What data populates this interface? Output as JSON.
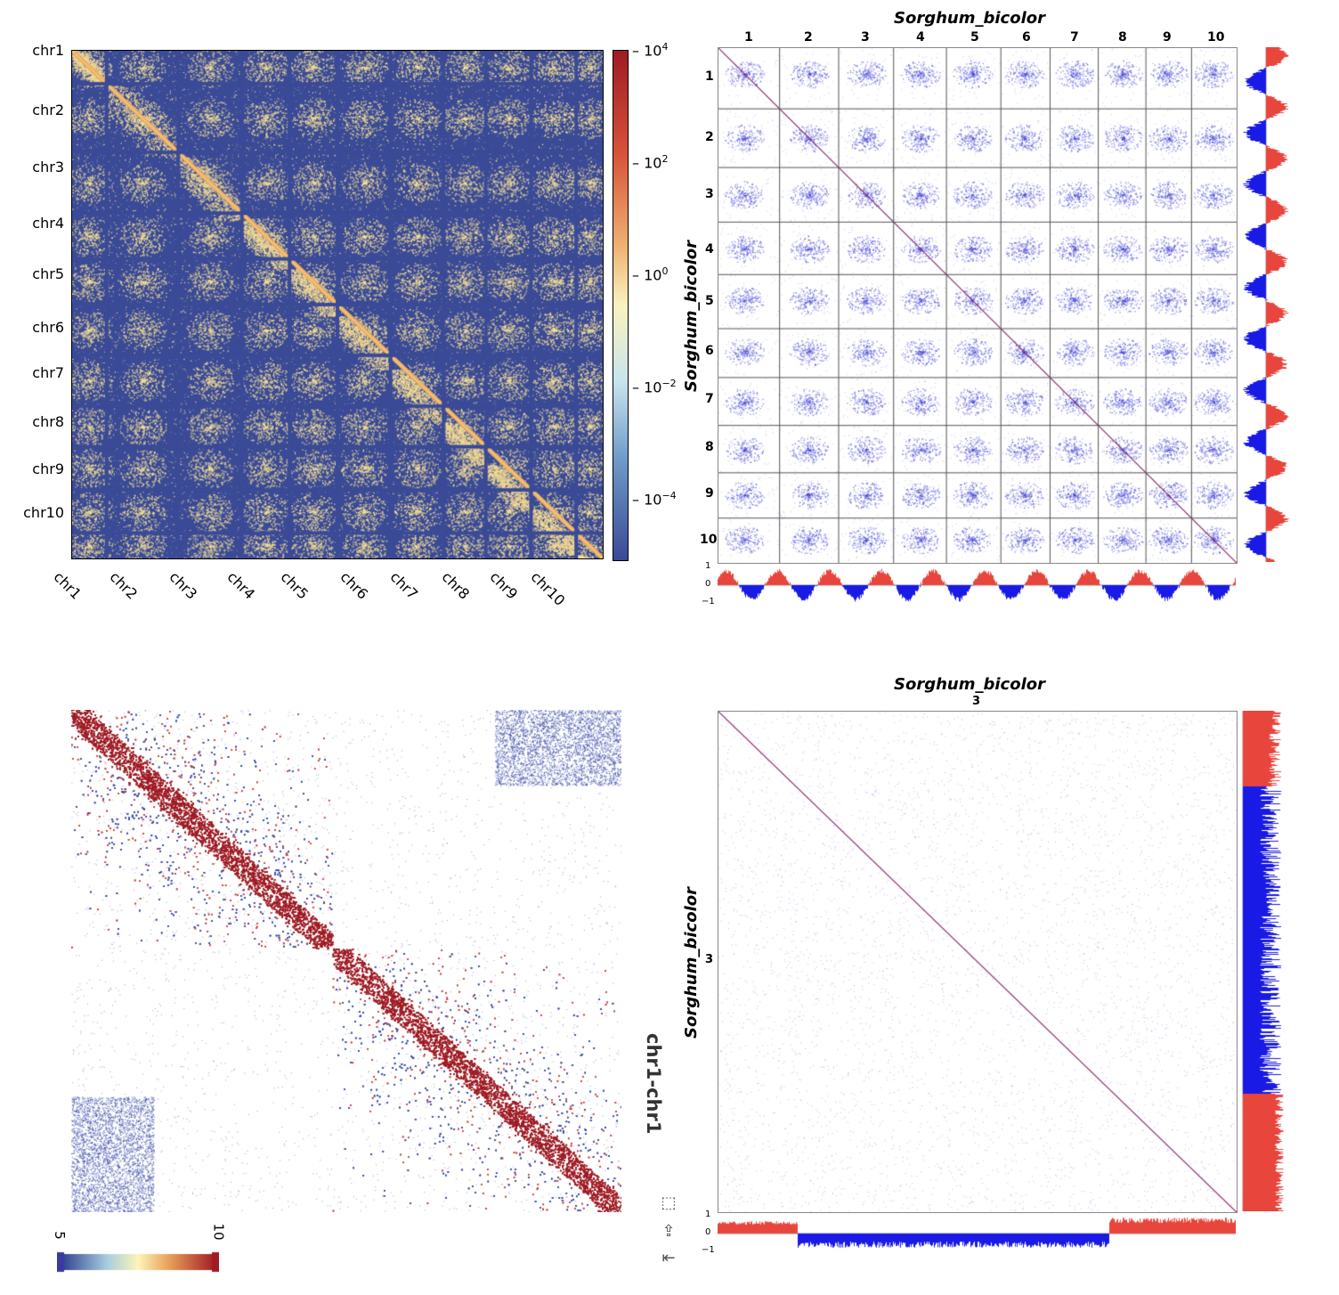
{
  "colors": {
    "dark_blue": "#3a4a96",
    "yellow": "#f6dc92",
    "orange": "#e8a860",
    "dark_red": "#a01c24",
    "scatter_blue": "#3b3bd6",
    "diag_purple": "#8a2a6c",
    "red_bar": "#e8453c",
    "blue_bar": "#1a1ae6"
  },
  "panel_a": {
    "rows": [
      "chr1",
      "chr2",
      "chr3",
      "chr4",
      "chr5",
      "chr6",
      "chr7",
      "chr8",
      "chr9",
      "chr10"
    ],
    "cols": [
      "chr1",
      "chr2",
      "chr3",
      "chr4",
      "chr5",
      "chr6",
      "chr7",
      "chr8",
      "chr9",
      "chr10"
    ],
    "colorbar": [
      {
        "base": "10",
        "exp": "4"
      },
      {
        "base": "10",
        "exp": "2"
      },
      {
        "base": "10",
        "exp": "0"
      },
      {
        "base": "10",
        "exp": "−2"
      },
      {
        "base": "10",
        "exp": "−4"
      }
    ]
  },
  "panel_b": {
    "title": "Sorghum_bicolor",
    "ylabel": "Sorghum_bicolor",
    "col_labels": [
      "1",
      "2",
      "3",
      "4",
      "5",
      "6",
      "7",
      "8",
      "9",
      "10"
    ],
    "row_labels": [
      "1",
      "2",
      "3",
      "4",
      "5",
      "6",
      "7",
      "8",
      "9",
      "10"
    ],
    "track_ticks": [
      "1",
      "0",
      "−1"
    ]
  },
  "panel_c": {
    "colorbar_min": "5",
    "colorbar_max": "10"
  },
  "panel_d": {
    "title": "Sorghum_bicolor",
    "subtitle": "3",
    "ylabel": "Sorghum_bicolor",
    "ylabel2": "chr1-chr1",
    "row_label": "3",
    "track_ticks": [
      "1",
      "0",
      "−1"
    ]
  },
  "chart_data": [
    {
      "type": "heatmap",
      "title": "",
      "x_categories": [
        "chr1",
        "chr2",
        "chr3",
        "chr4",
        "chr5",
        "chr6",
        "chr7",
        "chr8",
        "chr9",
        "chr10"
      ],
      "y_categories": [
        "chr1",
        "chr2",
        "chr3",
        "chr4",
        "chr5",
        "chr6",
        "chr7",
        "chr8",
        "chr9",
        "chr10"
      ],
      "colorbar_scale": "log",
      "colorbar_range": [
        1e-05,
        10000
      ],
      "colorbar_ticks": [
        "10^4",
        "10^2",
        "10^0",
        "10^-2",
        "10^-4"
      ]
    },
    {
      "type": "heatmap",
      "title": "Sorghum_bicolor",
      "xlabel": "",
      "ylabel": "Sorghum_bicolor",
      "x_categories": [
        "1",
        "2",
        "3",
        "4",
        "5",
        "6",
        "7",
        "8",
        "9",
        "10"
      ],
      "y_categories": [
        "1",
        "2",
        "3",
        "4",
        "5",
        "6",
        "7",
        "8",
        "9",
        "10"
      ],
      "track_ylim": [
        -1,
        1
      ]
    },
    {
      "type": "heatmap",
      "title": "",
      "colorbar_range": [
        5,
        10
      ]
    },
    {
      "type": "heatmap",
      "title": "Sorghum_bicolor",
      "subtitle": "3",
      "ylabel": "Sorghum_bicolor chr1-chr1",
      "y_categories": [
        "3"
      ],
      "track_ylim": [
        -1,
        1
      ]
    }
  ]
}
